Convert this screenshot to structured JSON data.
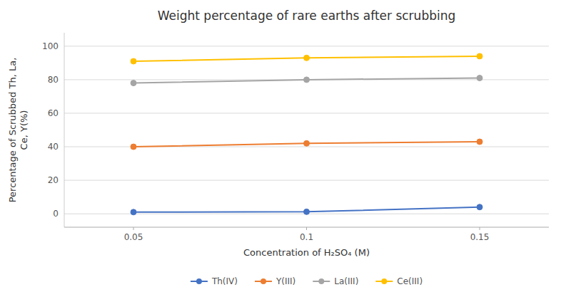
{
  "chart_data": {
    "type": "line",
    "title": "Weight percentage of rare earths after scrubbing",
    "x_label": "Concentration of H₂SO₄ (M)",
    "y_label": "Percentage of Scrubbed Th, La,\nCe, Y(%)",
    "x": [
      0.05,
      0.1,
      0.15
    ],
    "series": [
      {
        "name": "Th(IV)",
        "values": [
          1.0,
          1.2,
          4.0
        ],
        "color": "#4472C4",
        "marker": "circle"
      },
      {
        "name": "Y(III)",
        "values": [
          40.0,
          42.0,
          43.0
        ],
        "color": "#ED7D31",
        "marker": "circle"
      },
      {
        "name": "La(III)",
        "values": [
          78.0,
          80.0,
          81.0
        ],
        "color": "#A5A5A5",
        "marker": "circle"
      },
      {
        "name": "Ce(III)",
        "values": [
          91.0,
          93.0,
          94.0
        ],
        "color": "#FFC000",
        "marker": "circle"
      }
    ],
    "xlim": [
      0.03,
      0.17
    ],
    "xticks": [
      0.05,
      0.1,
      0.15
    ],
    "ylim": [
      -8,
      108
    ],
    "yticks": [
      0,
      20,
      40,
      60,
      80,
      100
    ],
    "grid": true,
    "legend": "bottom"
  }
}
